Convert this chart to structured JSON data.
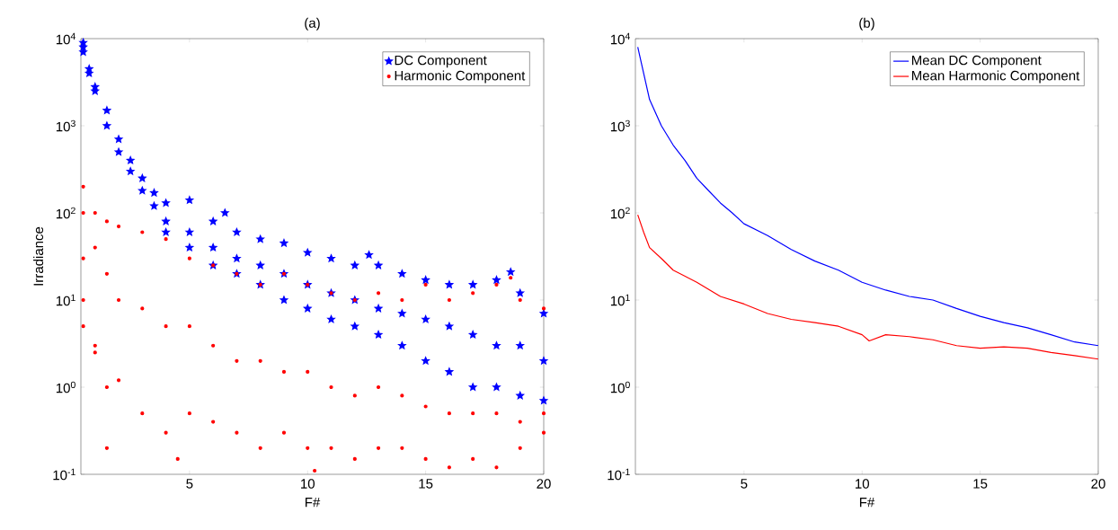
{
  "chart_data": [
    {
      "type": "scatter",
      "title": "(a)",
      "xlabel": "F#",
      "ylabel": "Irradiance",
      "log": "y",
      "legend": "top right",
      "xlim": [
        0.4,
        20
      ],
      "xticks": [
        5,
        10,
        15,
        20
      ],
      "ylim": [
        0.1,
        10000
      ],
      "yticks": [
        {
          "value": 0.1,
          "label": "10$^{-1}$"
        },
        {
          "value": 1,
          "label": "10$^{0}$"
        },
        {
          "value": 10,
          "label": "10$^{1}$"
        },
        {
          "value": 100,
          "label": "10$^{2}$"
        },
        {
          "value": 1000,
          "label": "10$^{3}$"
        },
        {
          "value": 10000,
          "label": "10$^{4}$"
        }
      ],
      "series": [
        {
          "name": "DC Component",
          "color": "#0000ff",
          "marker": "star",
          "x": [
            0.5,
            0.5,
            0.5,
            0.75,
            0.75,
            1,
            1,
            1.5,
            1.5,
            2,
            2,
            2.5,
            2.5,
            3,
            3,
            3.5,
            3.5,
            4,
            4,
            4,
            5,
            5,
            5,
            6,
            6,
            6,
            6.5,
            7,
            7,
            7,
            8,
            8,
            8,
            9,
            9,
            9,
            10,
            10,
            10,
            11,
            11,
            11,
            12,
            12,
            12,
            12.6,
            13,
            13,
            13,
            14,
            14,
            14,
            15,
            15,
            15,
            16,
            16,
            16,
            17,
            17,
            17,
            18,
            18,
            18,
            18.6,
            19,
            19,
            19,
            20,
            20,
            20
          ],
          "values": [
            8000,
            9000,
            7000,
            4000,
            4500,
            2500,
            2800,
            1500,
            1000,
            700,
            500,
            400,
            300,
            250,
            180,
            170,
            120,
            130,
            80,
            60,
            140,
            60,
            40,
            80,
            40,
            25,
            100,
            60,
            30,
            20,
            50,
            25,
            15,
            45,
            20,
            10,
            35,
            15,
            8,
            30,
            12,
            6,
            25,
            10,
            5,
            33,
            25,
            8,
            4,
            20,
            7,
            3,
            17,
            6,
            2,
            15,
            5,
            1.5,
            15,
            4,
            1,
            17,
            3,
            1,
            21,
            12,
            3,
            0.8,
            7,
            2,
            0.7
          ]
        },
        {
          "name": "Harmonic Component",
          "color": "#ff0000",
          "marker": "circle",
          "x": [
            0.5,
            0.5,
            0.5,
            0.5,
            0.5,
            1,
            1,
            1,
            1,
            1.5,
            1.5,
            1.5,
            1.5,
            2,
            2,
            2,
            3,
            3,
            3,
            4,
            4,
            4,
            4.5,
            5,
            5,
            5,
            6,
            6,
            6,
            7,
            7,
            7,
            8,
            8,
            8,
            9,
            9,
            9,
            10,
            10,
            10,
            10.3,
            11,
            11,
            11,
            12,
            12,
            12,
            13,
            13,
            13,
            14,
            14,
            14,
            15,
            15,
            15,
            16,
            16,
            16,
            17,
            17,
            17,
            18,
            18,
            18,
            18.6,
            19,
            19,
            19,
            20,
            20,
            20
          ],
          "values": [
            200,
            100,
            30,
            10,
            5,
            100,
            40,
            3,
            2.5,
            80,
            20,
            1,
            0.2,
            70,
            10,
            1.2,
            60,
            8,
            0.5,
            50,
            5,
            0.3,
            0.15,
            30,
            5,
            0.5,
            25,
            3,
            0.4,
            20,
            2,
            0.3,
            15,
            2,
            0.2,
            20,
            1.5,
            0.3,
            15,
            1.5,
            0.2,
            0.11,
            12,
            1,
            0.2,
            10,
            0.8,
            0.15,
            12,
            1,
            0.2,
            10,
            0.8,
            0.2,
            15,
            0.6,
            0.15,
            10,
            0.5,
            0.12,
            12,
            0.5,
            0.15,
            15,
            0.5,
            0.12,
            18,
            10,
            0.4,
            0.2,
            8,
            0.5,
            0.3
          ]
        }
      ]
    },
    {
      "type": "line",
      "title": "(b)",
      "xlabel": "F#",
      "log": "y",
      "legend": "top right",
      "xlim": [
        0.4,
        20
      ],
      "xticks": [
        5,
        10,
        15,
        20
      ],
      "ylim": [
        0.1,
        10000
      ],
      "yticks": [
        {
          "value": 0.1,
          "label": "10$^{-1}$"
        },
        {
          "value": 1,
          "label": "10$^{0}$"
        },
        {
          "value": 10,
          "label": "10$^{1}$"
        },
        {
          "value": 100,
          "label": "10$^{2}$"
        },
        {
          "value": 1000,
          "label": "10$^{3}$"
        },
        {
          "value": 10000,
          "label": "10$^{4}$"
        }
      ],
      "series": [
        {
          "name": "Mean DC Component",
          "color": "#0000ff",
          "x": [
            0.5,
            1,
            1.5,
            2,
            2.5,
            3,
            3.5,
            4,
            4.5,
            5,
            6,
            7,
            8,
            9,
            10,
            11,
            12,
            13,
            14,
            15,
            16,
            17,
            18,
            19,
            20
          ],
          "values": [
            8000,
            2000,
            1000,
            600,
            400,
            250,
            180,
            130,
            100,
            75,
            55,
            38,
            28,
            22,
            16,
            13,
            11,
            10,
            8,
            6.5,
            5.5,
            4.8,
            4,
            3.3,
            3
          ]
        },
        {
          "name": "Mean Harmonic Component",
          "color": "#ff0000",
          "x": [
            0.5,
            0.75,
            1,
            1.5,
            2,
            3,
            4,
            5,
            6,
            7,
            8,
            9,
            10,
            10.3,
            11,
            12,
            13,
            14,
            15,
            16,
            17,
            18,
            19,
            20
          ],
          "values": [
            95,
            60,
            40,
            30,
            22,
            16,
            11,
            9,
            7,
            6,
            5.5,
            5,
            4,
            3.4,
            4,
            3.8,
            3.5,
            3,
            2.8,
            2.9,
            2.8,
            2.5,
            2.3,
            2.1
          ]
        }
      ]
    }
  ]
}
